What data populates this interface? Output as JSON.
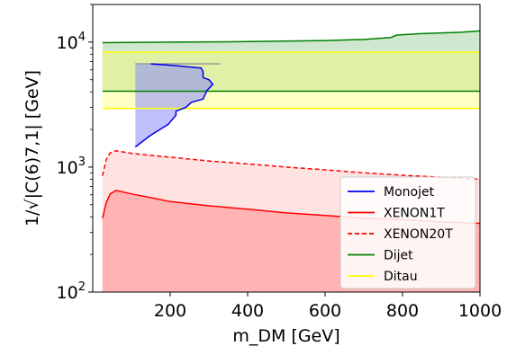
{
  "chart_data": {
    "type": "area",
    "xlabel": "m_DM [GeV]",
    "ylabel": "1/√|C(6)7,1| [GeV]",
    "xlim": [
      0,
      1000
    ],
    "ylim": [
      100,
      20000
    ],
    "yscale": "log",
    "xticks": [
      200,
      400,
      600,
      800,
      1000
    ],
    "yticks": [
      100,
      1000,
      10000
    ],
    "grid": false,
    "legend": "bottom-right",
    "series": [
      {
        "name": "Monojet",
        "color": "#0000ee",
        "x": [
          110,
          150,
          195,
          215,
          215,
          240,
          255,
          285,
          295,
          310,
          300,
          285,
          285,
          280,
          210,
          150
        ],
        "y": [
          1450,
          1800,
          2200,
          2600,
          2800,
          3000,
          3300,
          3500,
          4100,
          4600,
          5000,
          5200,
          5800,
          6200,
          6500,
          6700
        ]
      },
      {
        "name": "XENON1T",
        "color": "#ff0000",
        "x": [
          25,
          35,
          45,
          60,
          80,
          100,
          150,
          200,
          300,
          400,
          500,
          600,
          700,
          800,
          900,
          1000
        ],
        "y": [
          390,
          520,
          610,
          650,
          630,
          610,
          570,
          530,
          490,
          460,
          430,
          410,
          390,
          380,
          365,
          355
        ]
      },
      {
        "name": "XENON20T",
        "color": "#ff0000",
        "x": [
          25,
          35,
          45,
          60,
          80,
          100,
          150,
          200,
          300,
          400,
          500,
          600,
          700,
          800,
          900,
          1000
        ],
        "y": [
          850,
          1150,
          1300,
          1350,
          1320,
          1290,
          1240,
          1200,
          1120,
          1060,
          1000,
          950,
          900,
          860,
          830,
          800
        ]
      },
      {
        "name": "Dijet",
        "color": "#008000",
        "x": [
          25,
          200,
          400,
          600,
          700,
          770,
          785,
          850,
          950,
          1000
        ],
        "y": [
          9900,
          10000,
          10100,
          10300,
          10500,
          10900,
          11400,
          11700,
          12000,
          12300
        ]
      },
      {
        "name": "Dijet lower",
        "color": "#008000",
        "x": [
          25,
          1000
        ],
        "y": [
          4050,
          4050
        ]
      },
      {
        "name": "Ditau",
        "color": "#ffff00",
        "x": [
          25,
          1000
        ],
        "y": [
          8300,
          8300
        ]
      },
      {
        "name": "Ditau lower",
        "color": "#ffff00",
        "x": [
          25,
          1000
        ],
        "y": [
          2950,
          2950
        ]
      }
    ]
  }
}
